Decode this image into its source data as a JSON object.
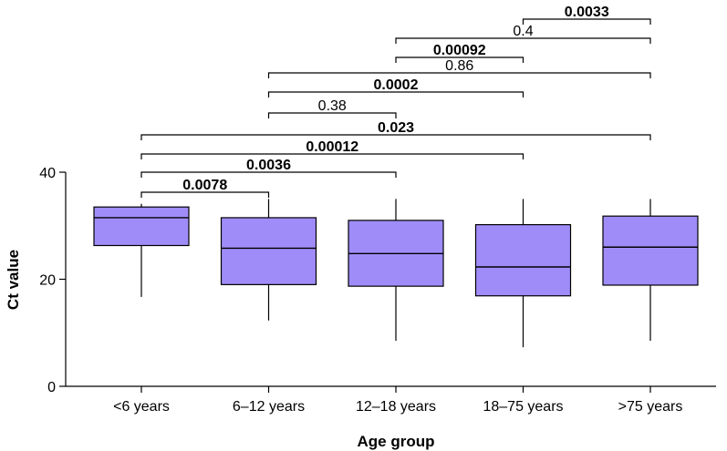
{
  "chart_data": {
    "type": "box",
    "xlabel": "Age group",
    "ylabel": "Ct value",
    "ylim": [
      0,
      40
    ],
    "yticks": [
      0,
      20,
      40
    ],
    "box_color": "#a08cf8",
    "categories": [
      "<6 years",
      "6–12 years",
      "12–18 years",
      "18–75 years",
      ">75 years"
    ],
    "boxes": [
      {
        "min": 16.7,
        "q1": 26.3,
        "median": 31.5,
        "q3": 33.5,
        "max": 34.1
      },
      {
        "min": 12.3,
        "q1": 19.0,
        "median": 25.8,
        "q3": 31.5,
        "max": 35.0
      },
      {
        "min": 8.5,
        "q1": 18.7,
        "median": 24.8,
        "q3": 31.0,
        "max": 35.0
      },
      {
        "min": 7.3,
        "q1": 16.9,
        "median": 22.3,
        "q3": 30.2,
        "max": 35.0
      },
      {
        "min": 8.5,
        "q1": 18.9,
        "median": 26.0,
        "q3": 31.8,
        "max": 35.0
      }
    ],
    "comparisons": [
      {
        "from": 0,
        "to": 1,
        "p": "0.0078",
        "significant": true
      },
      {
        "from": 0,
        "to": 2,
        "p": "0.0036",
        "significant": true
      },
      {
        "from": 0,
        "to": 3,
        "p": "0.00012",
        "significant": true
      },
      {
        "from": 0,
        "to": 4,
        "p": "0.023",
        "significant": true
      },
      {
        "from": 1,
        "to": 2,
        "p": "0.38",
        "significant": false
      },
      {
        "from": 1,
        "to": 3,
        "p": "0.0002",
        "significant": true
      },
      {
        "from": 1,
        "to": 4,
        "p": "0.86",
        "significant": false
      },
      {
        "from": 2,
        "to": 3,
        "p": "0.00092",
        "significant": true
      },
      {
        "from": 2,
        "to": 4,
        "p": "0.4",
        "significant": false
      },
      {
        "from": 3,
        "to": 4,
        "p": "0.0033",
        "significant": true
      }
    ]
  }
}
